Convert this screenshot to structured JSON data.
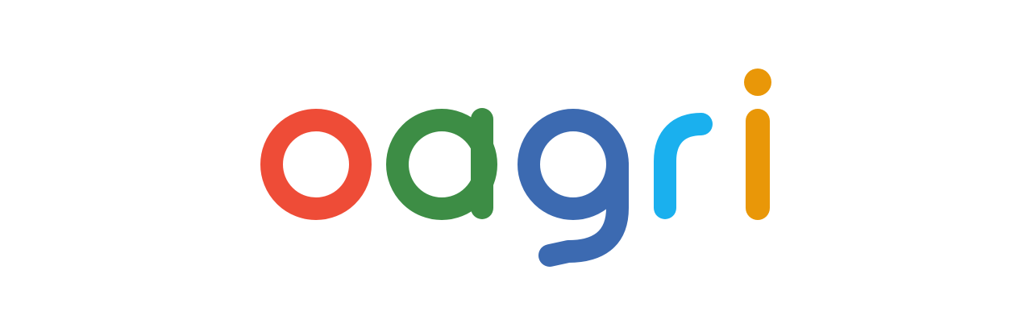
{
  "logo": {
    "wordmark": "oagri",
    "letters": [
      {
        "char": "o",
        "color": "#ee4c37"
      },
      {
        "char": "a",
        "color": "#3d8d45"
      },
      {
        "char": "g",
        "color": "#3c6ab1"
      },
      {
        "char": "r",
        "color": "#1ab0ee"
      },
      {
        "char": "i",
        "color": "#e99708"
      }
    ],
    "background": "#ffffff"
  }
}
